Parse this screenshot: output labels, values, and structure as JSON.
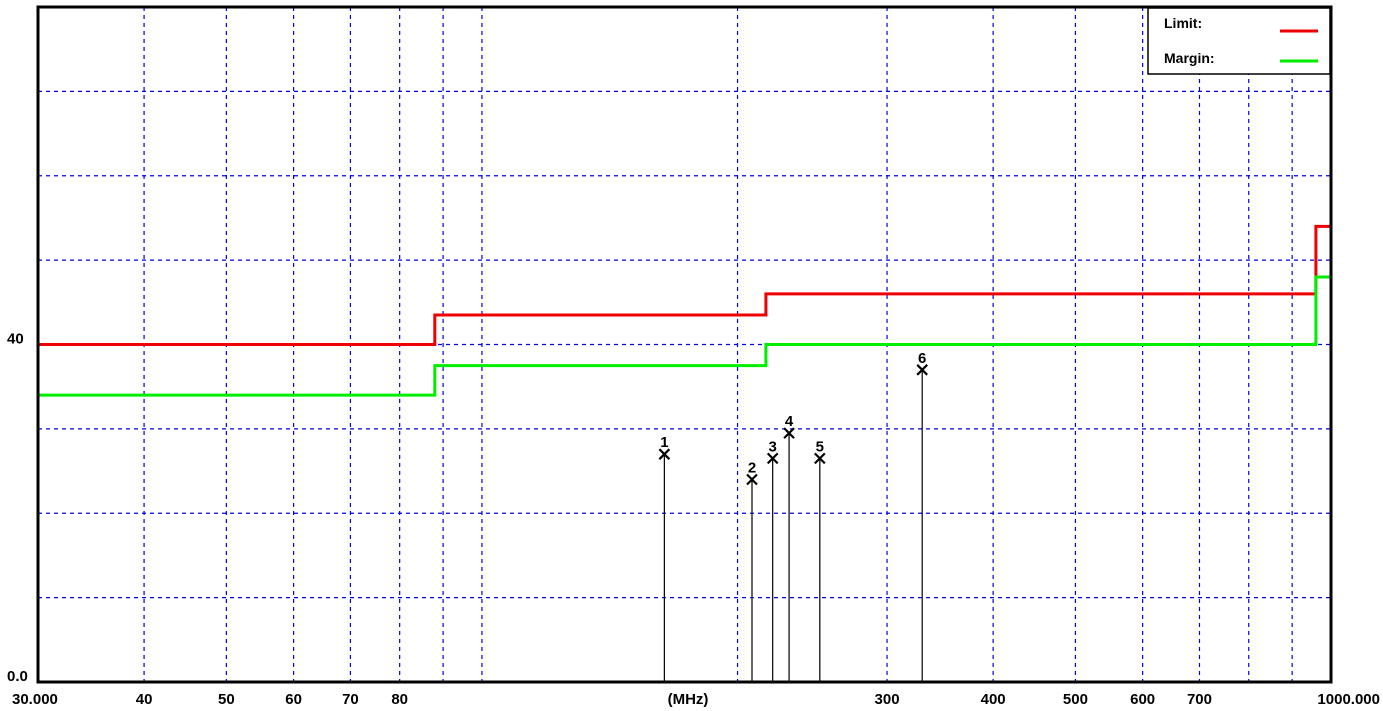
{
  "chart_data": {
    "type": "line",
    "xscale": "log",
    "xlim": [
      30,
      1000
    ],
    "ylim": [
      0,
      80
    ],
    "x_tick_labels": [
      {
        "value": 30,
        "label": "30.000"
      },
      {
        "value": 40,
        "label": "40"
      },
      {
        "value": 50,
        "label": "50"
      },
      {
        "value": 60,
        "label": "60"
      },
      {
        "value": 70,
        "label": "70"
      },
      {
        "value": 80,
        "label": "80"
      },
      {
        "value": 300,
        "label": "300"
      },
      {
        "value": 400,
        "label": "400"
      },
      {
        "value": 500,
        "label": "500"
      },
      {
        "value": 600,
        "label": "600"
      },
      {
        "value": 700,
        "label": "700"
      },
      {
        "value": 1000,
        "label": "1000.000"
      }
    ],
    "x_unit_label": "(MHz)",
    "y_tick_labels": [
      {
        "value": 40,
        "label": "40"
      },
      {
        "value": 0,
        "label": "0.0"
      }
    ],
    "grid": true,
    "legend": {
      "placement": "top-right",
      "entries": [
        {
          "name": "Limit:",
          "color": "#ee0000"
        },
        {
          "name": "Margin:",
          "color": "#00ee00"
        }
      ]
    },
    "series": [
      {
        "name": "Limit:",
        "color": "#ee0000",
        "x": [
          30,
          88,
          88,
          216,
          216,
          960,
          960,
          1000
        ],
        "y": [
          40,
          40,
          43.5,
          43.5,
          46,
          46,
          54,
          54
        ]
      },
      {
        "name": "Margin:",
        "color": "#00ee00",
        "x": [
          30,
          88,
          88,
          216,
          216,
          960,
          960,
          1000
        ],
        "y": [
          34,
          34,
          37.5,
          37.5,
          40,
          40,
          48,
          48
        ]
      }
    ],
    "markers": [
      {
        "label": "1",
        "x": 164,
        "y": 27
      },
      {
        "label": "2",
        "x": 208,
        "y": 24
      },
      {
        "label": "3",
        "x": 220,
        "y": 26.5
      },
      {
        "label": "4",
        "x": 230,
        "y": 29.5
      },
      {
        "label": "5",
        "x": 250,
        "y": 26.5
      },
      {
        "label": "6",
        "x": 330,
        "y": 37
      }
    ]
  }
}
